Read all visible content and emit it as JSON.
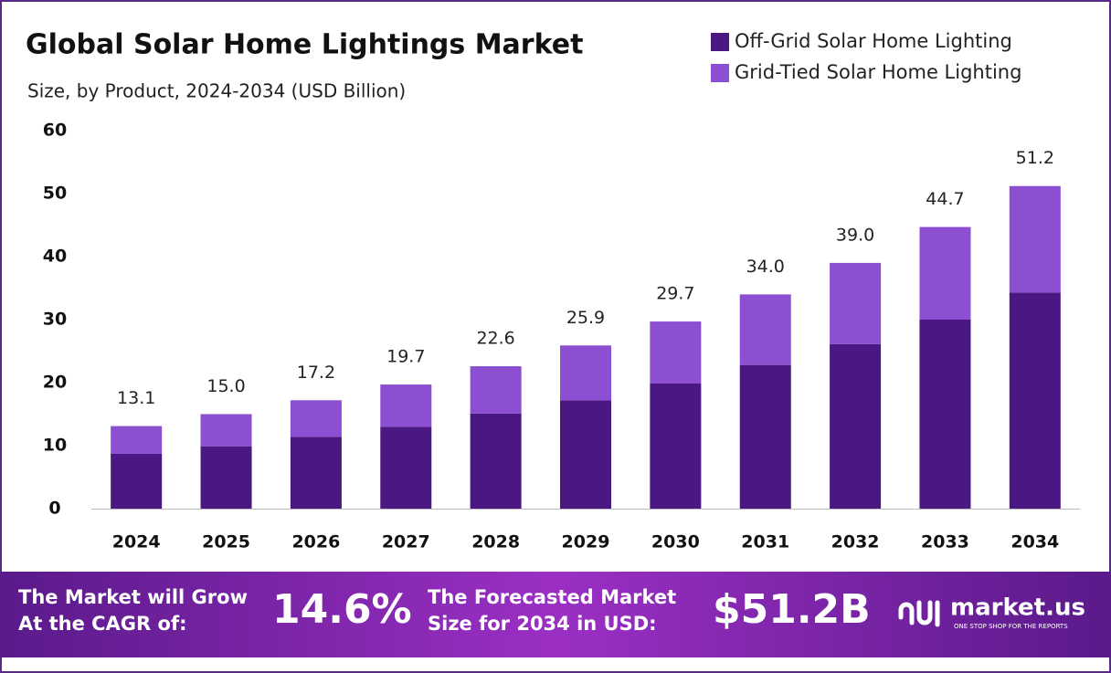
{
  "chart_data": {
    "type": "stacked-bar",
    "title": "Global Solar Home Lightings Market",
    "subtitle": "Size, by Product, 2024-2034 (USD Billion)",
    "categories": [
      "2024",
      "2025",
      "2026",
      "2027",
      "2028",
      "2029",
      "2030",
      "2031",
      "2032",
      "2033",
      "2034"
    ],
    "series": [
      {
        "name": "Off-Grid Solar Home Lighting",
        "color": "#4b1782",
        "values": [
          8.7,
          9.9,
          11.4,
          13.0,
          15.1,
          17.2,
          19.9,
          22.8,
          26.1,
          30.0,
          34.3
        ]
      },
      {
        "name": "Grid-Tied Solar Home Lighting",
        "color": "#8c4fd2",
        "values": [
          4.4,
          5.1,
          5.8,
          6.7,
          7.5,
          8.7,
          9.8,
          11.2,
          12.9,
          14.7,
          16.9
        ]
      }
    ],
    "totals": [
      13.1,
      15.0,
      17.2,
      19.7,
      22.6,
      25.9,
      29.7,
      34.0,
      39.0,
      44.7,
      51.2
    ],
    "totals_labels": [
      "13.1",
      "15.0",
      "17.2",
      "19.7",
      "22.6",
      "25.9",
      "29.7",
      "34.0",
      "39.0",
      "44.7",
      "51.2"
    ],
    "ylim": [
      0,
      60
    ],
    "yticks": [
      0,
      10,
      20,
      30,
      40,
      50,
      60
    ],
    "grid": false,
    "legend": "top-right"
  },
  "footer": {
    "cagr_label": [
      "The Market will Grow",
      "At the CAGR of:"
    ],
    "cagr": "14.6%",
    "forecast_label": [
      "The Forecasted Market",
      "Size for 2034 in USD:"
    ],
    "forecast": "$51.2B",
    "brand": "market.us",
    "tagline": "ONE STOP SHOP FOR THE REPORTS"
  }
}
